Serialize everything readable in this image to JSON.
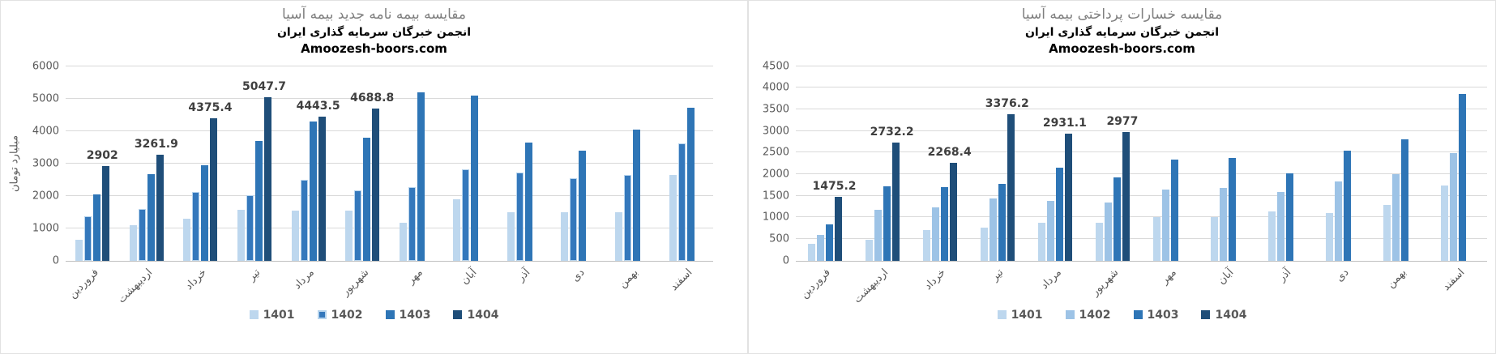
{
  "chart_data": [
    {
      "type": "bar",
      "title": "مقایسه بیمه نامه جدید بیمه آسیا",
      "subtitle": "انجمن خبرگان سرمایه گذاری ایران",
      "website": "Amoozesh-boors.com",
      "ylabel": "میلیارد تومان",
      "xlabel": "",
      "ylim": [
        0,
        6000
      ],
      "yticks": [
        0,
        1000,
        2000,
        3000,
        4000,
        5000,
        6000
      ],
      "grid": true,
      "legend_position": "bottom",
      "categories": [
        "فروردین",
        "اردیبهشت",
        "خرداد",
        "تیر",
        "مرداد",
        "شهریور",
        "مهر",
        "آبان",
        "آذر",
        "دی",
        "بهمن",
        "اسفند"
      ],
      "series": [
        {
          "name": "1401",
          "color": "#BDD7EE",
          "values": [
            650,
            1090,
            1300,
            1560,
            1530,
            1550,
            1160,
            1880,
            1480,
            1480,
            1500,
            2650
          ]
        },
        {
          "name": "1402",
          "color": "#3478BC",
          "border_color": "#B5D3ED",
          "values": [
            1370,
            1580,
            2110,
            2020,
            2500,
            2160,
            2270,
            2820,
            2710,
            2530,
            2650,
            3610
          ]
        },
        {
          "name": "1403",
          "color": "#2E75B6",
          "values": [
            2030,
            2660,
            2940,
            3680,
            4280,
            3790,
            5200,
            5100,
            3630,
            3390,
            4040,
            4710
          ]
        },
        {
          "name": "1404",
          "color": "#1F4E79",
          "values": [
            2902,
            3261.9,
            4375.4,
            5047.7,
            4443.5,
            4688.8,
            null,
            null,
            null,
            null,
            null,
            null
          ],
          "labels": [
            "2902",
            "3261.9",
            "4375.4",
            "5047.7",
            "4443.5",
            "4688.8",
            null,
            null,
            null,
            null,
            null,
            null
          ]
        }
      ]
    },
    {
      "type": "bar",
      "title": "مقایسه خسارات پرداختی بیمه آسیا",
      "subtitle": "انجمن خبرگان سرمایه گذاری ایران",
      "website": "Amoozesh-boors.com",
      "ylabel": "",
      "xlabel": "",
      "ylim": [
        0,
        4500
      ],
      "yticks": [
        0,
        500,
        1000,
        1500,
        2000,
        2500,
        3000,
        3500,
        4000,
        4500
      ],
      "grid": true,
      "legend_position": "bottom",
      "categories": [
        "فروردین",
        "اردیبهشت",
        "خرداد",
        "تیر",
        "مرداد",
        "شهریور",
        "مهر",
        "آبان",
        "آذر",
        "دی",
        "بهمن",
        "اسفند"
      ],
      "series": [
        {
          "name": "1401",
          "color": "#BDD7EE",
          "values": [
            380,
            470,
            710,
            760,
            880,
            880,
            1000,
            1000,
            1130,
            1100,
            1290,
            1740
          ]
        },
        {
          "name": "1402",
          "color": "#9DC3E6",
          "values": [
            600,
            1170,
            1230,
            1430,
            1380,
            1340,
            1650,
            1670,
            1580,
            1830,
            1990,
            2490
          ]
        },
        {
          "name": "1403",
          "color": "#2E75B6",
          "values": [
            840,
            1720,
            1690,
            1780,
            2150,
            1920,
            2340,
            2370,
            2010,
            2540,
            2800,
            3860
          ]
        },
        {
          "name": "1404",
          "color": "#1F4E79",
          "values": [
            1475.2,
            2732.2,
            2268.4,
            3376.2,
            2931.1,
            2977,
            null,
            null,
            null,
            null,
            null,
            null
          ],
          "labels": [
            "1475.2",
            "2732.2",
            "2268.4",
            "3376.2",
            "2931.1",
            "2977",
            null,
            null,
            null,
            null,
            null,
            null
          ]
        }
      ]
    }
  ]
}
